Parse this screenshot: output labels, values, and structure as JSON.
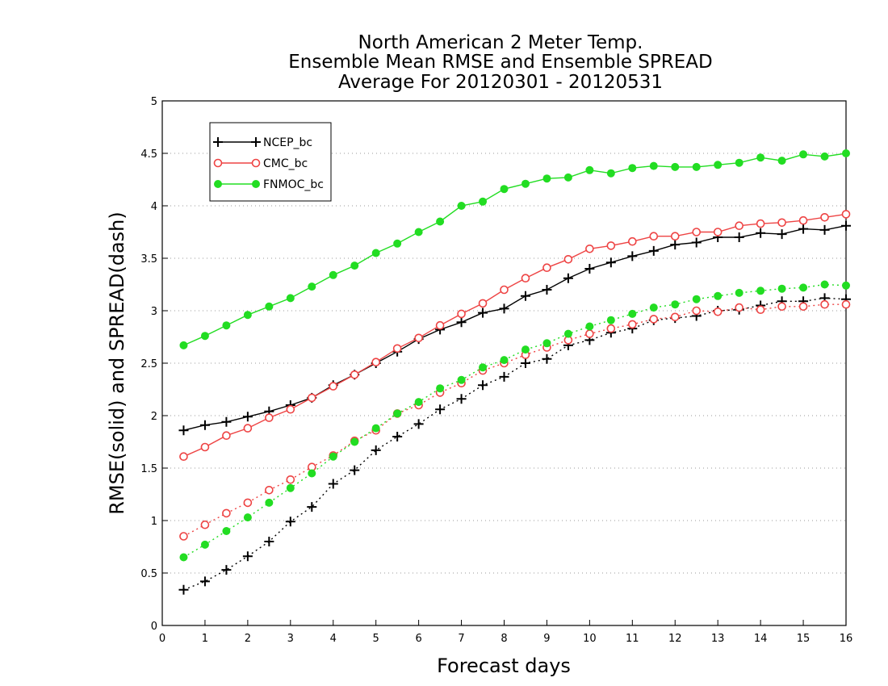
{
  "chart_data": {
    "type": "line",
    "title": "North American 2 Meter Temp.",
    "subtitle": "Ensemble Mean RMSE and Ensemble SPREAD",
    "subtitle2": "Average For 20120301 - 20120531",
    "xlabel": "Forecast days",
    "ylabel": "RMSE(solid) and SPREAD(dash)",
    "xlim": [
      0,
      16
    ],
    "ylim": [
      0,
      5
    ],
    "xticks": [
      0,
      1,
      2,
      3,
      4,
      5,
      6,
      7,
      8,
      9,
      10,
      11,
      12,
      13,
      14,
      15,
      16
    ],
    "yticks": [
      0,
      0.5,
      1,
      1.5,
      2,
      2.5,
      3,
      3.5,
      4,
      4.5,
      5
    ],
    "grid": "horizontal-dotted",
    "legend_position": "top-left",
    "x": [
      0.5,
      1,
      1.5,
      2,
      2.5,
      3,
      3.5,
      4,
      4.5,
      5,
      5.5,
      6,
      6.5,
      7,
      7.5,
      8,
      8.5,
      9,
      9.5,
      10,
      10.5,
      11,
      11.5,
      12,
      12.5,
      13,
      13.5,
      14,
      14.5,
      15,
      15.5,
      16
    ],
    "series": [
      {
        "name": "NCEP_bc",
        "color": "#000000",
        "marker": "plus",
        "rmse": [
          1.86,
          1.91,
          1.94,
          1.99,
          2.04,
          2.1,
          2.17,
          2.29,
          2.39,
          2.5,
          2.61,
          2.73,
          2.82,
          2.89,
          2.98,
          3.02,
          3.14,
          3.2,
          3.31,
          3.4,
          3.46,
          3.52,
          3.57,
          3.63,
          3.65,
          3.7,
          3.7,
          3.74,
          3.73,
          3.78,
          3.77,
          3.81
        ],
        "spread": [
          0.34,
          0.42,
          0.53,
          0.66,
          0.8,
          0.99,
          1.13,
          1.35,
          1.48,
          1.67,
          1.8,
          1.92,
          2.06,
          2.16,
          2.29,
          2.37,
          2.5,
          2.54,
          2.67,
          2.72,
          2.79,
          2.83,
          2.91,
          2.93,
          2.95,
          3.0,
          3.01,
          3.05,
          3.09,
          3.09,
          3.12,
          3.11
        ]
      },
      {
        "name": "CMC_bc",
        "color": "#ee4444",
        "marker": "open-circle",
        "rmse": [
          1.61,
          1.7,
          1.81,
          1.88,
          1.98,
          2.06,
          2.17,
          2.28,
          2.39,
          2.51,
          2.64,
          2.74,
          2.86,
          2.97,
          3.07,
          3.2,
          3.31,
          3.41,
          3.49,
          3.59,
          3.62,
          3.66,
          3.71,
          3.71,
          3.75,
          3.75,
          3.81,
          3.83,
          3.84,
          3.86,
          3.89,
          3.92
        ],
        "spread": [
          0.85,
          0.96,
          1.07,
          1.17,
          1.29,
          1.39,
          1.51,
          1.62,
          1.76,
          1.86,
          2.02,
          2.1,
          2.22,
          2.31,
          2.43,
          2.5,
          2.58,
          2.65,
          2.72,
          2.78,
          2.83,
          2.87,
          2.92,
          2.94,
          3.0,
          2.99,
          3.03,
          3.01,
          3.04,
          3.04,
          3.06,
          3.06
        ]
      },
      {
        "name": "FNMOC_bc",
        "color": "#22dd22",
        "marker": "filled-circle",
        "rmse": [
          2.67,
          2.76,
          2.86,
          2.96,
          3.04,
          3.12,
          3.23,
          3.34,
          3.43,
          3.55,
          3.64,
          3.75,
          3.85,
          4.0,
          4.04,
          4.16,
          4.21,
          4.26,
          4.27,
          4.34,
          4.31,
          4.36,
          4.38,
          4.37,
          4.37,
          4.39,
          4.41,
          4.46,
          4.43,
          4.49,
          4.47,
          4.5
        ],
        "spread": [
          0.65,
          0.77,
          0.9,
          1.03,
          1.17,
          1.31,
          1.45,
          1.61,
          1.75,
          1.88,
          2.02,
          2.13,
          2.26,
          2.34,
          2.46,
          2.53,
          2.63,
          2.69,
          2.78,
          2.85,
          2.91,
          2.97,
          3.03,
          3.06,
          3.11,
          3.14,
          3.17,
          3.19,
          3.21,
          3.22,
          3.25,
          3.24
        ]
      }
    ]
  }
}
